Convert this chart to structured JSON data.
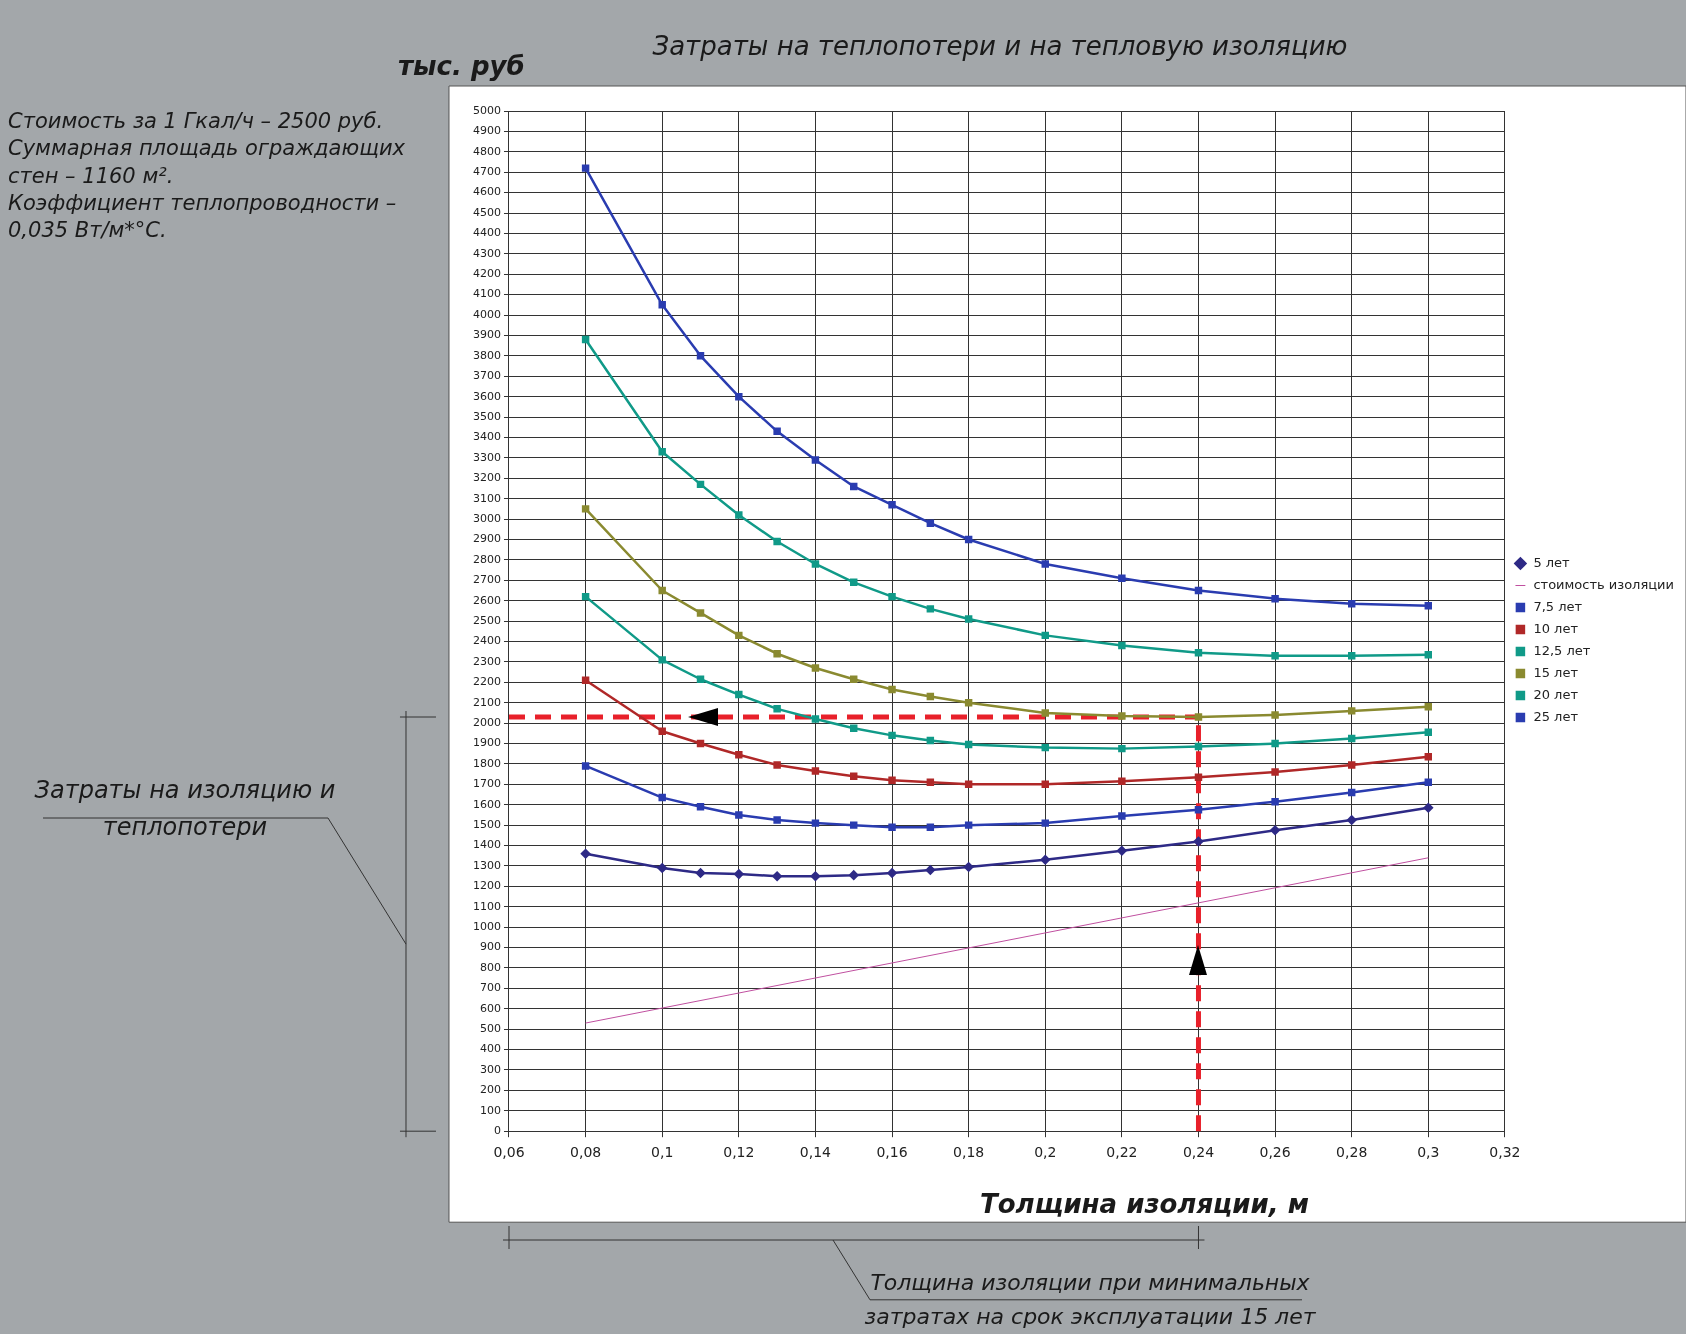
{
  "chart_data": {
    "type": "line",
    "title": "Затраты на теплопотери и на тепловую изоляцию",
    "xlabel": "Толщина изоляции, м",
    "ylabel": "тыс. руб",
    "annotations": [
      "Стоимость за 1 Гкал/ч – 2500 руб.",
      "Суммарная площадь ограждающих стен – 1160 м².",
      "Коэффициент теплопроводности – 0,035 Вт/м*°С.",
      "Затраты на изоляцию и теплопотери",
      "Толщина изоляции при минимальных затратах на срок эксплуатации 15 лет"
    ],
    "x": [
      0.08,
      0.1,
      0.11,
      0.12,
      0.13,
      0.14,
      0.15,
      0.16,
      0.17,
      0.18,
      0.2,
      0.22,
      0.24,
      0.26,
      0.28,
      0.3
    ],
    "series": [
      {
        "name": "5 лет",
        "color": "#2e2a86",
        "marker": "diamond",
        "values": [
          1360,
          1290,
          1265,
          1260,
          1250,
          1250,
          1255,
          1265,
          1280,
          1295,
          1330,
          1375,
          1420,
          1475,
          1525,
          1585
        ]
      },
      {
        "name": "стоимость изоляции",
        "color": "#c050a0",
        "marker": "none",
        "x": [
          0.08,
          0.3
        ],
        "values": [
          530,
          1340
        ]
      },
      {
        "name": "7,5 лет",
        "color": "#2a3cb0",
        "marker": "square",
        "values": [
          1790,
          1635,
          1590,
          1550,
          1525,
          1510,
          1500,
          1490,
          1490,
          1500,
          1510,
          1545,
          1575,
          1615,
          1660,
          1710
        ]
      },
      {
        "name": "10 лет",
        "color": "#b02828",
        "marker": "square",
        "values": [
          2210,
          1960,
          1900,
          1845,
          1795,
          1765,
          1740,
          1720,
          1710,
          1700,
          1700,
          1715,
          1735,
          1760,
          1795,
          1835
        ]
      },
      {
        "name": "12,5 лет",
        "color": "#109a88",
        "marker": "square",
        "values": [
          2620,
          2310,
          2215,
          2140,
          2070,
          2020,
          1975,
          1940,
          1915,
          1895,
          1880,
          1875,
          1885,
          1900,
          1925,
          1955
        ]
      },
      {
        "name": "15 лет",
        "color": "#8a8a30",
        "marker": "square",
        "values": [
          3050,
          2650,
          2540,
          2430,
          2340,
          2270,
          2215,
          2165,
          2130,
          2100,
          2050,
          2035,
          2030,
          2040,
          2060,
          2080
        ]
      },
      {
        "name": "20 лет",
        "color": "#109a88",
        "marker": "square",
        "values": [
          3880,
          3330,
          3170,
          3020,
          2890,
          2780,
          2690,
          2620,
          2560,
          2510,
          2430,
          2380,
          2345,
          2330,
          2330,
          2335
        ]
      },
      {
        "name": "25 лет",
        "color": "#2a3cb0",
        "marker": "square",
        "values": [
          4720,
          4050,
          3800,
          3600,
          3430,
          3290,
          3160,
          3070,
          2980,
          2900,
          2780,
          2710,
          2650,
          2610,
          2585,
          2575
        ]
      }
    ],
    "xlim": [
      0.06,
      0.32
    ],
    "xticks": [
      {
        "value": 0.06,
        "label": "0,06"
      },
      {
        "value": 0.08,
        "label": "0,08"
      },
      {
        "value": 0.1,
        "label": "0,1"
      },
      {
        "value": 0.12,
        "label": "0,12"
      },
      {
        "value": 0.14,
        "label": "0,14"
      },
      {
        "value": 0.16,
        "label": "0,16"
      },
      {
        "value": 0.18,
        "label": "0,18"
      },
      {
        "value": 0.2,
        "label": "0,2"
      },
      {
        "value": 0.22,
        "label": "0,22"
      },
      {
        "value": 0.24,
        "label": "0,24"
      },
      {
        "value": 0.26,
        "label": "0,26"
      },
      {
        "value": 0.28,
        "label": "0,28"
      },
      {
        "value": 0.3,
        "label": "0,3"
      },
      {
        "value": 0.32,
        "label": "0,32"
      }
    ],
    "ylim": [
      0,
      5000
    ],
    "yticks": [
      0,
      100,
      200,
      300,
      400,
      500,
      600,
      700,
      800,
      900,
      1000,
      1100,
      1200,
      1300,
      1400,
      1500,
      1600,
      1700,
      1800,
      1900,
      2000,
      2100,
      2200,
      2300,
      2400,
      2500,
      2600,
      2700,
      2800,
      2900,
      3000,
      3100,
      3200,
      3300,
      3400,
      3500,
      3600,
      3700,
      3800,
      3900,
      4000,
      4100,
      4200,
      4300,
      4400,
      4500,
      4600,
      4700,
      4800,
      4900,
      5000
    ],
    "grid": true,
    "legend": "right",
    "ref_lines": [
      {
        "axis": "y",
        "value": 2030,
        "color": "#e8202a",
        "line_style": "dashed"
      },
      {
        "axis": "x",
        "value": 0.24,
        "color": "#e8202a",
        "line_style": "dashed"
      }
    ]
  }
}
